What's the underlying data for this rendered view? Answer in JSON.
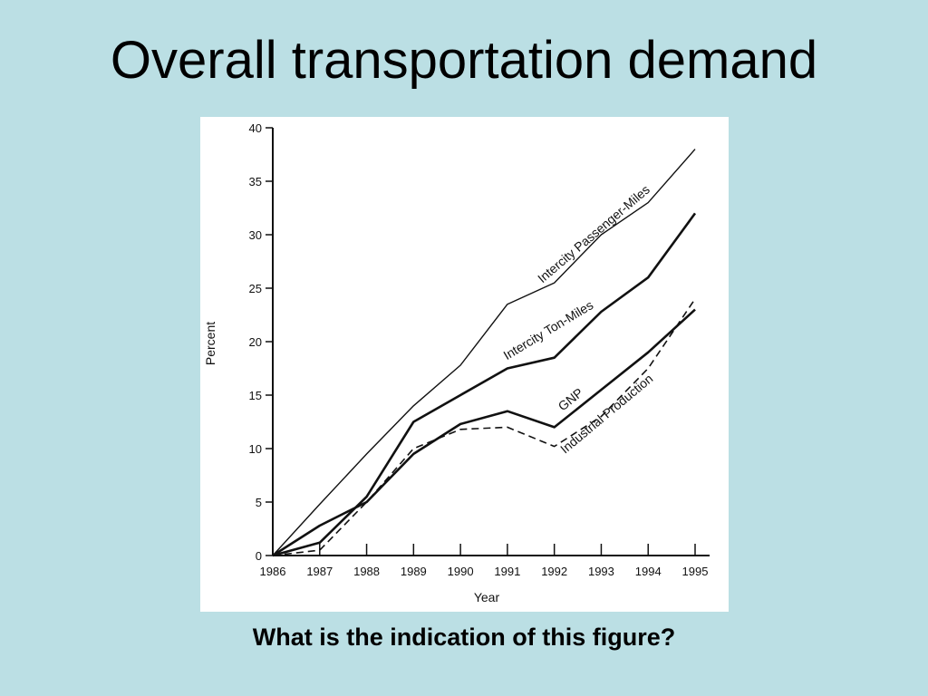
{
  "slide": {
    "title": "Overall transportation demand",
    "caption": "What is the indication of this figure?"
  },
  "chart_data": {
    "type": "line",
    "x": [
      1986,
      1987,
      1988,
      1989,
      1990,
      1991,
      1992,
      1993,
      1994,
      1995
    ],
    "xlabel": "Year",
    "ylabel": "Percent",
    "xlim": [
      1986,
      1995
    ],
    "ylim": [
      0,
      40
    ],
    "y_ticks": [
      0,
      5,
      10,
      15,
      20,
      25,
      30,
      35,
      40
    ],
    "grid": false,
    "legend": "inline labels along lines",
    "series": [
      {
        "name": "Intercity Passenger-Miles",
        "style": "thin-solid",
        "values": [
          0,
          4.8,
          9.5,
          14,
          17.8,
          23.5,
          25.5,
          30,
          33,
          38
        ]
      },
      {
        "name": "Intercity Ton-Miles",
        "style": "thick-solid",
        "values": [
          0,
          1.2,
          5.5,
          12.5,
          15,
          17.5,
          18.5,
          22.8,
          26,
          32
        ]
      },
      {
        "name": "GNP",
        "style": "thick-solid",
        "values": [
          0,
          2.8,
          5,
          9.5,
          12.3,
          13.5,
          12,
          15.5,
          19,
          23
        ]
      },
      {
        "name": "Industrial Production",
        "style": "dashed",
        "values": [
          0,
          0.5,
          5,
          10,
          11.8,
          12,
          10.2,
          13,
          17.5,
          24
        ]
      }
    ]
  }
}
